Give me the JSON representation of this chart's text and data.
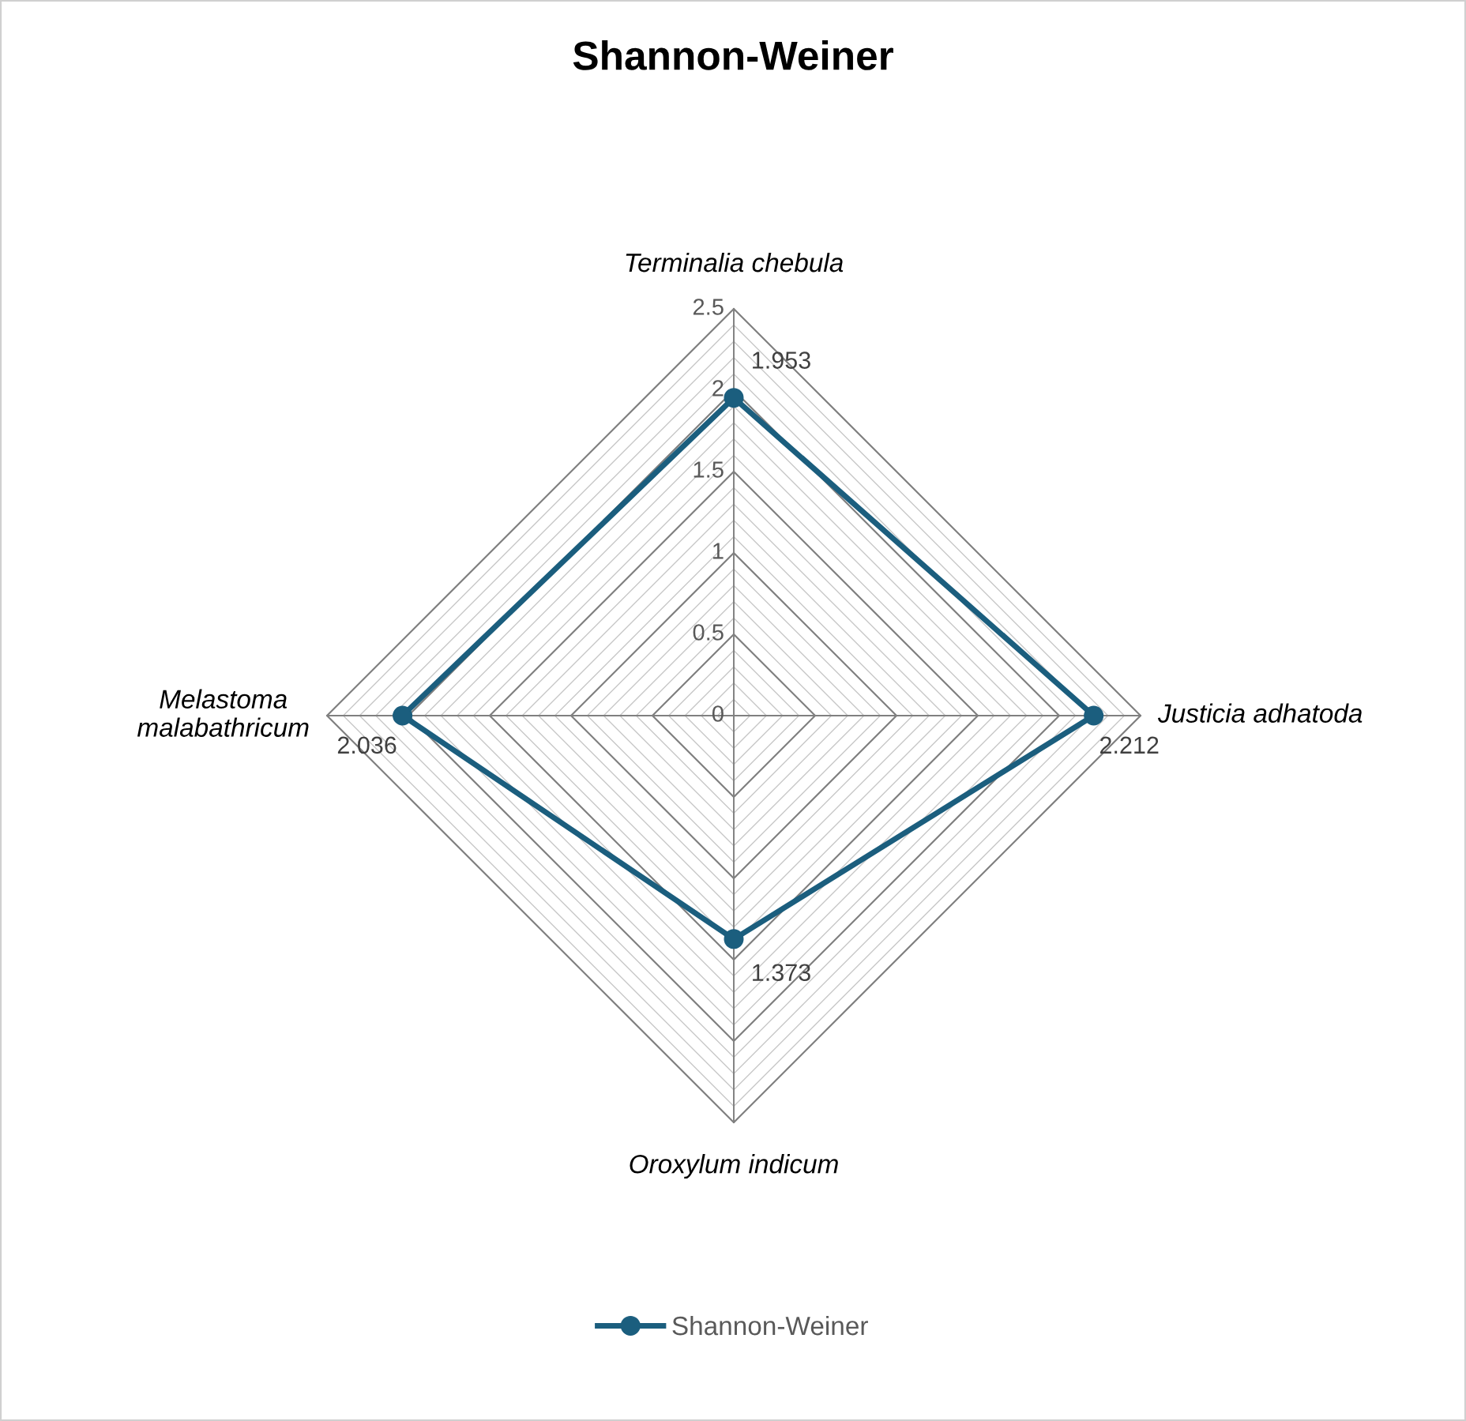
{
  "chart_data": {
    "type": "radar",
    "title": "Shannon-Weiner",
    "categories": [
      "Terminalia chebula",
      "Justicia adhatoda",
      "Oroxylum indicum",
      "Melastoma\nmalabathricum"
    ],
    "series": [
      {
        "name": "Shannon-Weiner",
        "color": "#1b5e7e",
        "values": [
          1.953,
          2.212,
          1.373,
          2.036
        ]
      }
    ],
    "ylim": [
      0,
      2.5
    ],
    "yticks": [
      0,
      0.5,
      1,
      1.5,
      2,
      2.5
    ],
    "grid": true,
    "data_labels": true,
    "legend": "bottom",
    "marker": "circle",
    "line_style": "solid"
  }
}
